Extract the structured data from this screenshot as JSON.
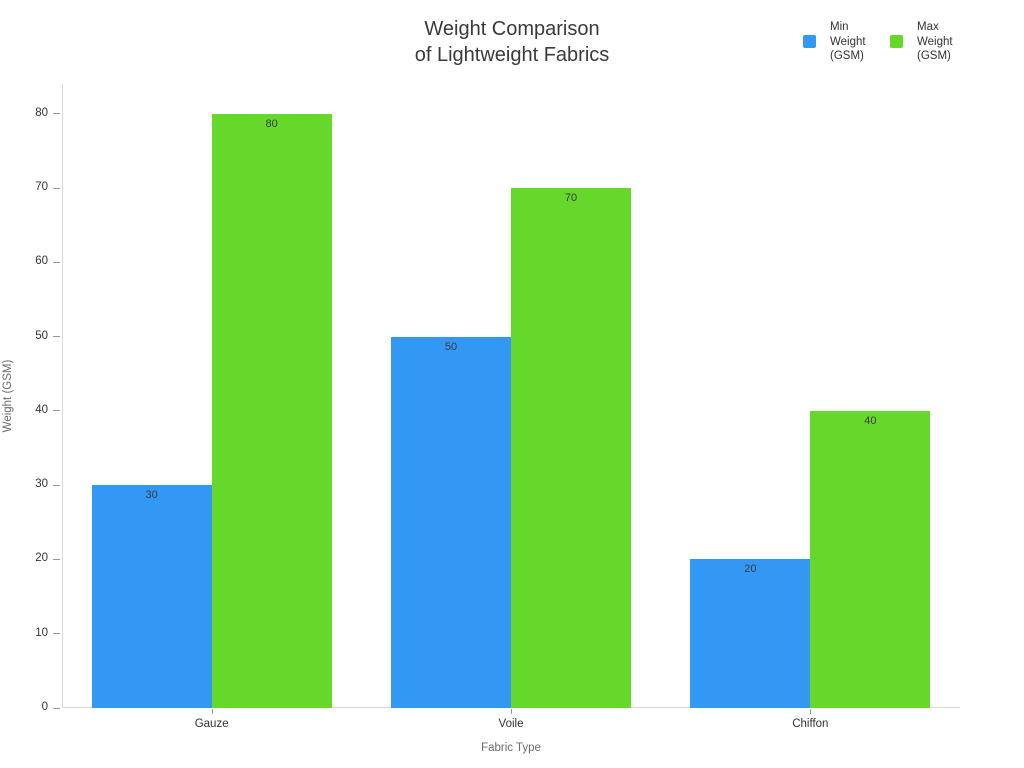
{
  "title": {
    "line1": "Weight Comparison",
    "line2": "of Lightweight Fabrics"
  },
  "legend": {
    "items": [
      {
        "label_lines": [
          "Min",
          "Weight",
          "(GSM)"
        ],
        "color": "#3398f4"
      },
      {
        "label_lines": [
          "Max",
          "Weight",
          "(GSM)"
        ],
        "color": "#66d82c"
      }
    ]
  },
  "chart_data": {
    "type": "bar",
    "title": "Weight Comparison of Lightweight Fabrics",
    "categories": [
      "Gauze",
      "Voile",
      "Chiffon"
    ],
    "series": [
      {
        "name": "Min Weight (GSM)",
        "color": "#3398f4",
        "values": [
          30,
          50,
          20
        ]
      },
      {
        "name": "Max Weight (GSM)",
        "color": "#66d82c",
        "values": [
          80,
          70,
          40
        ]
      }
    ],
    "xlabel": "Fabric Type",
    "ylabel": "Weight (GSM)",
    "ylim": [
      0,
      84
    ],
    "yticks": [
      0,
      10,
      20,
      30,
      40,
      50,
      60,
      70,
      80
    ],
    "grid": false,
    "legend_position": "top-right",
    "bar_labels": true
  }
}
